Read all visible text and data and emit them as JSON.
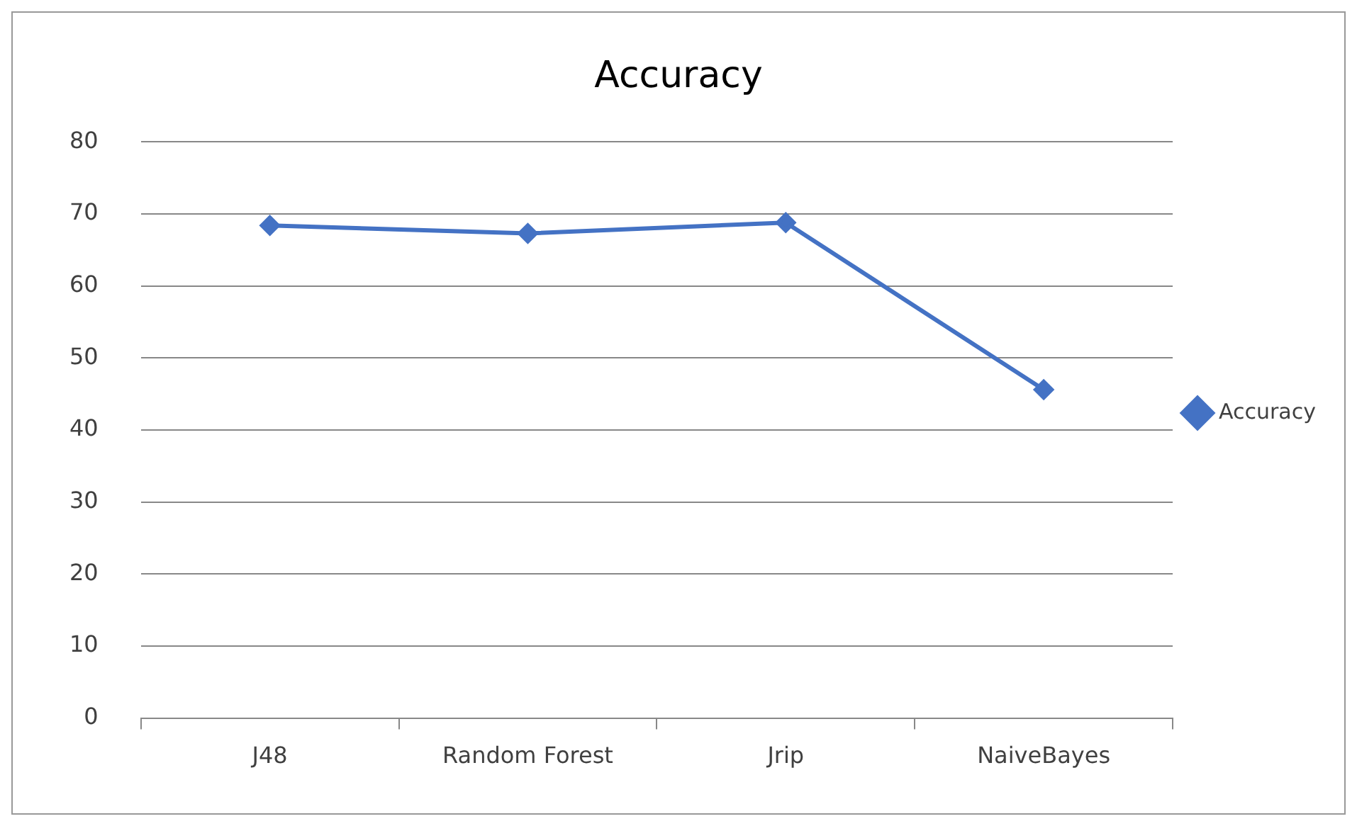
{
  "chart_data": {
    "type": "line",
    "title": "Accuracy",
    "categories": [
      "J48",
      "Random Forest",
      "Jrip",
      "NaiveBayes"
    ],
    "series": [
      {
        "name": "Accuracy",
        "color": "#4472c4",
        "values": [
          68.4,
          67.3,
          68.8,
          45.6
        ]
      }
    ],
    "ylim": [
      0,
      80
    ],
    "yticks": [
      0,
      10,
      20,
      30,
      40,
      50,
      60,
      70,
      80
    ],
    "grid": "y",
    "legend": "right",
    "marker": "diamond",
    "line_style": "solid"
  }
}
